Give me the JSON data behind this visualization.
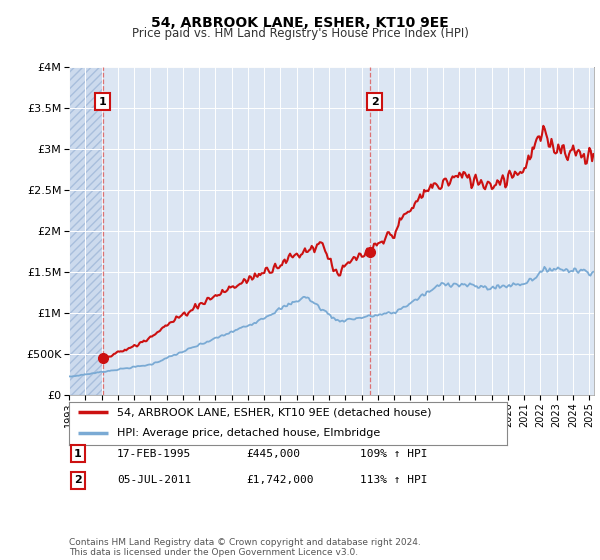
{
  "title": "54, ARBROOK LANE, ESHER, KT10 9EE",
  "subtitle": "Price paid vs. HM Land Registry's House Price Index (HPI)",
  "ylim": [
    0,
    4000000
  ],
  "yticks": [
    0,
    500000,
    1000000,
    1500000,
    2000000,
    2500000,
    3000000,
    3500000,
    4000000
  ],
  "ytick_labels": [
    "£0",
    "£500K",
    "£1M",
    "£1.5M",
    "£2M",
    "£2.5M",
    "£3M",
    "£3.5M",
    "£4M"
  ],
  "background_color": "#ffffff",
  "plot_bg_color": "#dce6f3",
  "grid_color": "#ffffff",
  "title_fontsize": 10,
  "subtitle_fontsize": 8.5,
  "hpi_color": "#7aaad4",
  "price_color": "#cc1111",
  "vline_color": "#dd6666",
  "point1_x": 1995.12,
  "point1_y": 445000,
  "point2_x": 2011.51,
  "point2_y": 1742000,
  "legend_label1": "54, ARBROOK LANE, ESHER, KT10 9EE (detached house)",
  "legend_label2": "HPI: Average price, detached house, Elmbridge",
  "table_row1": [
    "1",
    "17-FEB-1995",
    "£445,000",
    "109% ↑ HPI"
  ],
  "table_row2": [
    "2",
    "05-JUL-2011",
    "£1,742,000",
    "113% ↑ HPI"
  ],
  "footer": "Contains HM Land Registry data © Crown copyright and database right 2024.\nThis data is licensed under the Open Government Licence v3.0.",
  "xmin": 1993,
  "xmax": 2025.3
}
